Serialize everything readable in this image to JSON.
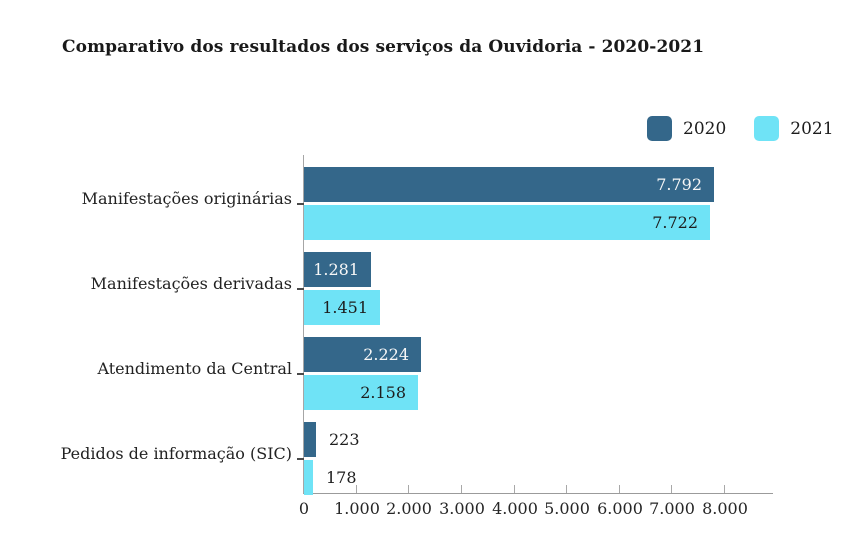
{
  "title": "Comparativo dos resultados dos serviços da Ouvidoria - 2020-2021",
  "legend": {
    "items": [
      {
        "label": "2020",
        "color": "#34678a"
      },
      {
        "label": "2021",
        "color": "#6fe3f6"
      }
    ]
  },
  "chart_data": {
    "type": "bar",
    "orientation": "horizontal",
    "title": "Comparativo dos resultados dos serviços da Ouvidoria - 2020-2021",
    "categories": [
      "Manifestações originárias",
      "Manifestações derivadas",
      "Atendimento da Central",
      "Pedidos de informação (SIC)"
    ],
    "series": [
      {
        "name": "2020",
        "color": "#34678a",
        "value_label_color_inside": "#f7f7f7",
        "values": [
          7792,
          1281,
          2224,
          223
        ],
        "value_labels": [
          "7.792",
          "1.281",
          "2.224",
          "223"
        ]
      },
      {
        "name": "2021",
        "color": "#6fe3f6",
        "value_label_color_inside": "#1d1d1d",
        "values": [
          7722,
          1451,
          2158,
          178
        ],
        "value_labels": [
          "7.722",
          "1.451",
          "2.158",
          "178"
        ]
      }
    ],
    "xlim": [
      0,
      8000
    ],
    "xticks": [
      0,
      1000,
      2000,
      3000,
      4000,
      5000,
      6000,
      7000,
      8000
    ],
    "xtick_labels": [
      "0",
      "1.000",
      "2.000",
      "3.000",
      "4.000",
      "5.000",
      "6.000",
      "7.000",
      "8.000"
    ],
    "grid": false,
    "legend_position": "top-right",
    "xlabel": "",
    "ylabel": ""
  }
}
